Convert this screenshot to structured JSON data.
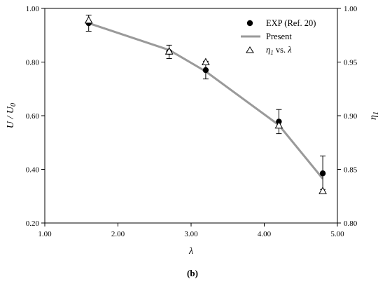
{
  "chart_data": {
    "type": "line",
    "caption": "(b)",
    "xlabel": "λ",
    "ylabel_left": "U / U0",
    "ylabel_right": "η1",
    "xlim": [
      1.0,
      5.0
    ],
    "ylim_left": [
      0.2,
      1.0
    ],
    "ylim_right": [
      0.8,
      1.0
    ],
    "x_ticks": [
      "1.00",
      "2.00",
      "3.00",
      "4.00",
      "5.00"
    ],
    "y_left_ticks": [
      "0.20",
      "0.40",
      "0.60",
      "0.80",
      "1.00"
    ],
    "y_right_ticks": [
      "0.80",
      "0.85",
      "0.90",
      "0.95",
      "1.00"
    ],
    "legend": {
      "placement": "top-right",
      "entries": [
        {
          "label": "EXP (Ref. 20)",
          "marker": "filled-circle"
        },
        {
          "label": "Present",
          "marker": "line"
        },
        {
          "label": "η1 vs. λ",
          "marker": "open-triangle"
        }
      ]
    },
    "series": [
      {
        "name": "EXP (Ref. 20)",
        "axis": "left",
        "x": [
          1.6,
          2.7,
          3.2,
          4.2,
          4.8
        ],
        "y": [
          0.945,
          0.838,
          0.77,
          0.578,
          0.385
        ],
        "err_low": [
          0.03,
          0.025,
          0.033,
          0.045,
          0.06
        ],
        "err_high": [
          0.03,
          0.025,
          0.033,
          0.045,
          0.065
        ]
      },
      {
        "name": "Present",
        "axis": "left",
        "x": [
          1.6,
          2.7,
          3.2,
          4.2,
          4.8
        ],
        "y": [
          0.945,
          0.845,
          0.765,
          0.565,
          0.365
        ],
        "color": "#9a9a9a"
      },
      {
        "name": "η1 vs. λ",
        "axis": "right",
        "x": [
          1.6,
          2.7,
          3.2,
          4.2,
          4.8
        ],
        "y": [
          0.989,
          0.96,
          0.95,
          0.891,
          0.83
        ]
      }
    ]
  }
}
